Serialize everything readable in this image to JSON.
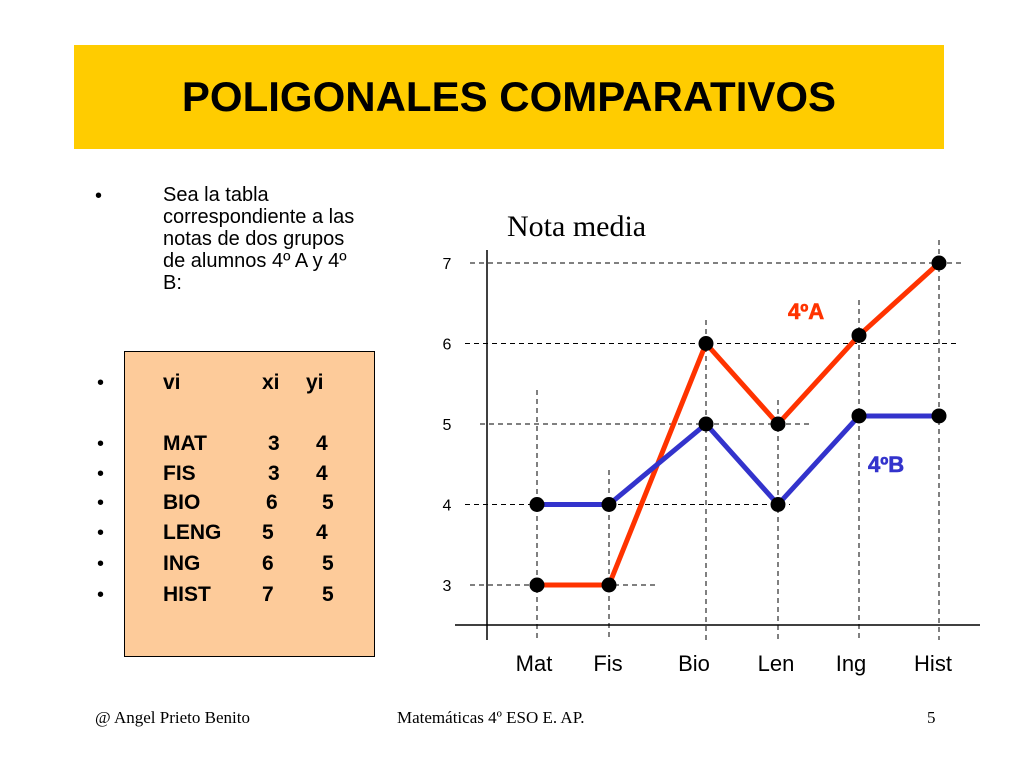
{
  "title": "POLIGONALES COMPARATIVOS",
  "intro": "Sea la tabla correspondiente a las notas de dos grupos de alumnos 4º A y 4º B:",
  "bullet": "•",
  "table": {
    "header": [
      "vi",
      "xi",
      "yi"
    ],
    "rows": [
      [
        "MAT",
        "3",
        "4"
      ],
      [
        "FIS",
        "3",
        "4"
      ],
      [
        "BIO",
        "6",
        "5"
      ],
      [
        "LENG",
        "5",
        "4"
      ],
      [
        "ING",
        "6",
        "5"
      ],
      [
        "HIST",
        "7",
        "5"
      ]
    ]
  },
  "chart_data": {
    "type": "line",
    "title": "Nota media",
    "categories": [
      "Mat",
      "Fis",
      "Bio",
      "Len",
      "Ing",
      "Hist"
    ],
    "yticks": [
      3,
      4,
      5,
      6,
      7
    ],
    "ylim": [
      3,
      7
    ],
    "grid": "dashed",
    "series": [
      {
        "name": "4ºA",
        "values": [
          3,
          3,
          6,
          5,
          6.1,
          7
        ],
        "color": "#ff3300"
      },
      {
        "name": "4ºB",
        "values": [
          4,
          4,
          5,
          4,
          5.1,
          5.1
        ],
        "color": "#3333cc"
      }
    ],
    "xlabel": "",
    "ylabel": ""
  },
  "footer": {
    "author": "@  Angel Prieto Benito",
    "course": "Matemáticas  4º ESO  E. AP.",
    "page": "5"
  }
}
